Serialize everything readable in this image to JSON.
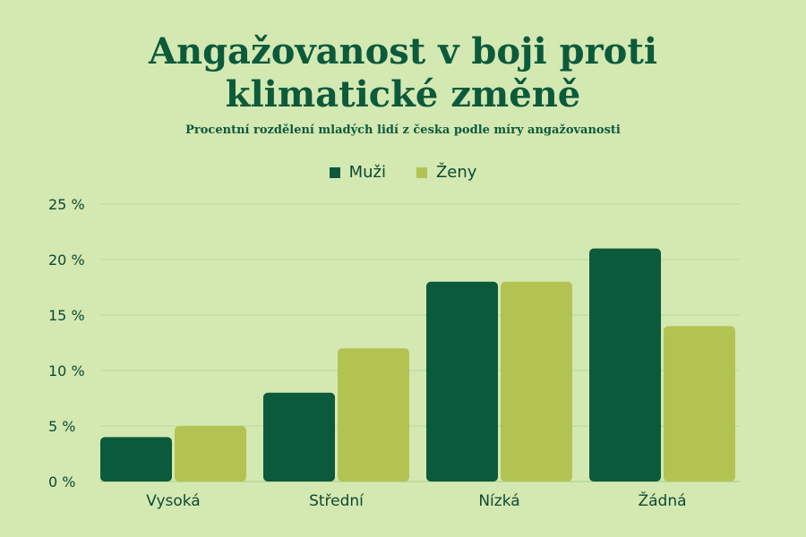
{
  "chart_data": {
    "type": "bar",
    "title_line1": "Angažovanost v boji proti",
    "title_line2": "klimatické změně",
    "subtitle": "Procentní rozdělení mladých lidí z česka podle míry angažovanosti",
    "categories": [
      "Vysoká",
      "Střední",
      "Nízká",
      "Žádná"
    ],
    "series": [
      {
        "name": "Muži",
        "values": [
          4,
          8,
          18,
          21
        ],
        "color": "#0c5a3c"
      },
      {
        "name": "Ženy",
        "values": [
          5,
          12,
          18,
          14
        ],
        "color": "#b2c352"
      }
    ],
    "ylim": [
      0,
      25
    ],
    "yticks": [
      0,
      5,
      10,
      15,
      20,
      25
    ],
    "ytick_labels": [
      "0 %",
      "5 %",
      "10 %",
      "15 %",
      "20 %",
      "25 %"
    ],
    "legend_position": "top-center",
    "grid": true
  },
  "colors": {
    "background": "#d4e8b2",
    "title": "#0c5a3c",
    "gridline": "#b9d79a"
  }
}
